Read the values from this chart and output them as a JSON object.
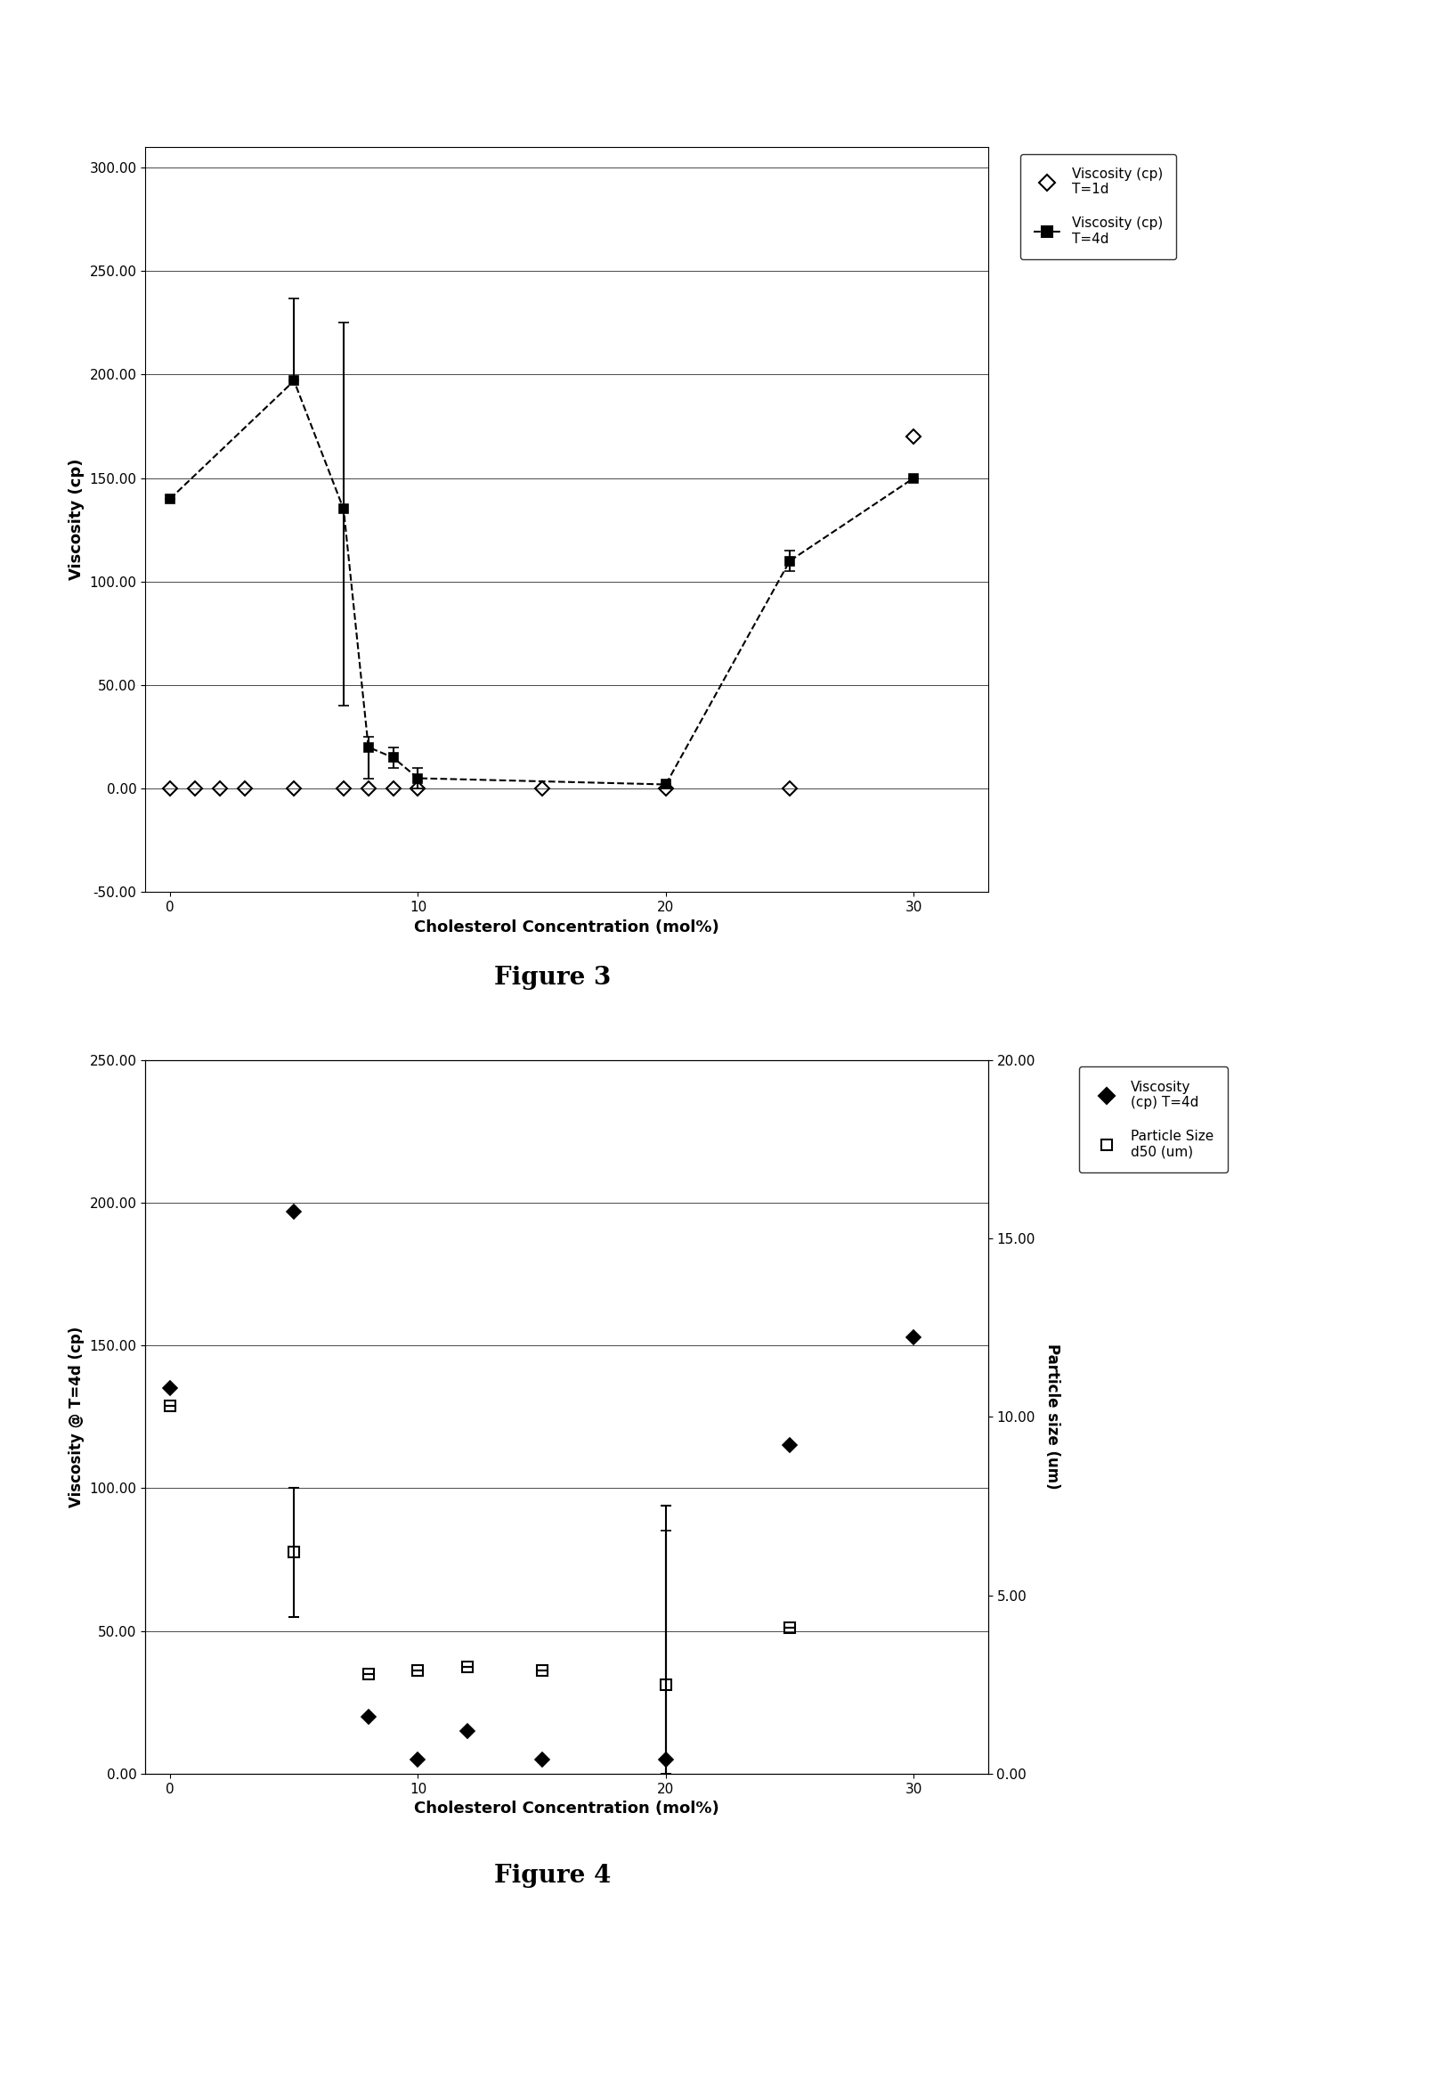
{
  "fig3": {
    "xlabel": "Cholesterol Concentration (mol%)",
    "ylabel": "Viscosity (cp)",
    "xlim": [
      -1,
      33
    ],
    "ylim": [
      -50,
      310
    ],
    "yticks": [
      -50.0,
      0.0,
      50.0,
      100.0,
      150.0,
      200.0,
      250.0,
      300.0
    ],
    "xticks": [
      0,
      10,
      20,
      30
    ],
    "t1d_x": [
      0,
      1,
      2,
      3,
      5,
      7,
      8,
      9,
      10,
      15,
      20,
      25,
      30
    ],
    "t1d_y": [
      0,
      0,
      0,
      0,
      0,
      0,
      0,
      0,
      0,
      0,
      0,
      0,
      170
    ],
    "t4d_x": [
      0,
      5,
      7,
      8,
      9,
      10,
      20,
      25,
      30
    ],
    "t4d_y": [
      140,
      197,
      135,
      20,
      15,
      5,
      2,
      110,
      150
    ],
    "t4d_yerr_lo": [
      0,
      0,
      95,
      15,
      5,
      5,
      2,
      5,
      0
    ],
    "t4d_yerr_hi": [
      0,
      40,
      90,
      5,
      5,
      5,
      0,
      5,
      0
    ],
    "legend_label_t1d": "Viscosity (cp)\nT=1d",
    "legend_label_t4d": "Viscosity (cp)\nT=4d"
  },
  "fig4": {
    "xlabel": "Cholesterol Concentration (mol%)",
    "ylabel_left": "Viscosity @ T=4d (cp)",
    "ylabel_right": "Particle size (um)",
    "xlim": [
      -1,
      33
    ],
    "ylim_left": [
      0,
      250
    ],
    "ylim_right": [
      0,
      20
    ],
    "yticks_left": [
      0.0,
      50.0,
      100.0,
      150.0,
      200.0,
      250.0
    ],
    "yticks_right": [
      0.0,
      5.0,
      10.0,
      15.0,
      20.0
    ],
    "xticks": [
      0,
      10,
      20,
      30
    ],
    "visc_x": [
      0,
      5,
      8,
      10,
      12,
      15,
      20,
      25,
      30
    ],
    "visc_y": [
      135,
      197,
      20,
      5,
      15,
      5,
      5,
      115,
      153
    ],
    "visc_yerr_lo": [
      0,
      0,
      0,
      0,
      0,
      0,
      5,
      0,
      0
    ],
    "visc_yerr_hi": [
      0,
      0,
      0,
      0,
      0,
      0,
      80,
      0,
      0
    ],
    "ps_x": [
      0,
      5,
      8,
      10,
      12,
      15,
      20,
      25
    ],
    "ps_y": [
      10.3,
      6.2,
      2.8,
      2.9,
      3.0,
      2.9,
      2.5,
      4.1
    ],
    "ps_yerr_lo": [
      0,
      1.8,
      0,
      0,
      0,
      0,
      2.5,
      0
    ],
    "ps_yerr_hi": [
      0,
      1.8,
      0,
      0,
      0,
      0,
      5.0,
      0
    ],
    "legend_label_visc": "Viscosity\n(cp) T=4d",
    "legend_label_ps": "Particle Size\nd50 (um)"
  },
  "figure3_caption": "Figure 3",
  "figure4_caption": "Figure 4",
  "background_color": "#ffffff"
}
